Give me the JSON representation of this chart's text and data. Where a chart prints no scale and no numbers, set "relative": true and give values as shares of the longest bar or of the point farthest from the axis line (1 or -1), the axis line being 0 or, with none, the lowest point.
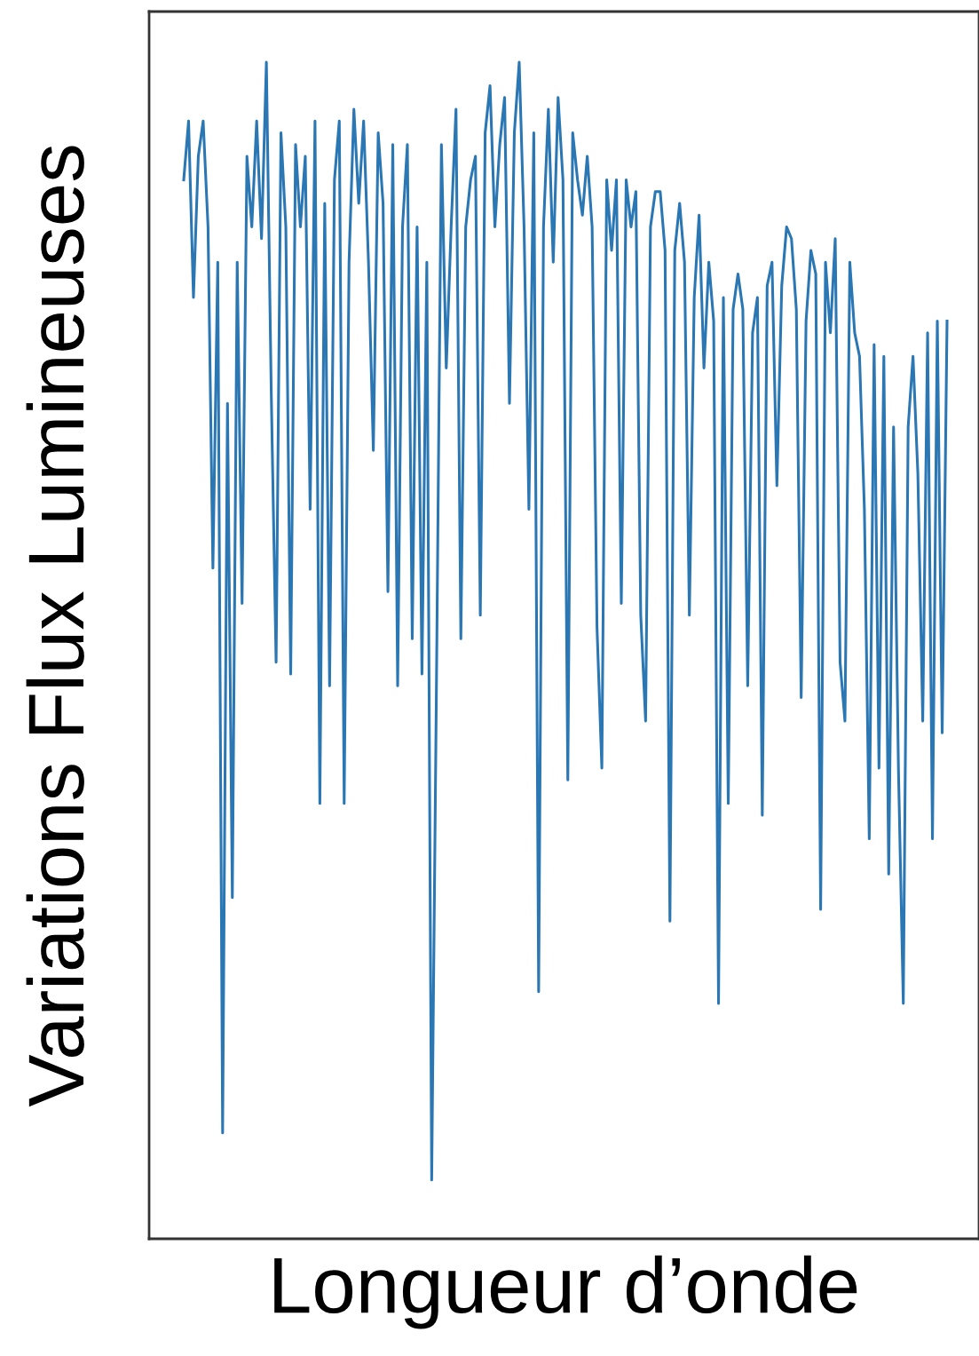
{
  "chart_data": {
    "type": "line",
    "relative": true,
    "xlabel": "Longueur d’onde",
    "ylabel": "Variations Flux Lumineuses",
    "color": "#2a77b4",
    "categories": [
      null,
      null,
      null,
      null,
      null,
      null,
      null,
      null,
      null,
      null,
      null,
      null,
      null,
      null,
      null,
      null,
      null,
      null,
      null,
      null,
      null,
      null,
      null,
      null,
      null,
      null,
      null,
      null,
      null,
      null,
      null,
      null,
      null,
      null,
      null,
      null,
      null,
      null,
      null,
      null,
      null,
      null,
      null,
      null,
      null,
      null,
      null,
      null,
      null,
      null,
      null,
      null,
      null,
      null,
      null,
      null,
      null,
      null,
      null,
      null,
      null,
      null,
      null,
      null,
      null,
      null,
      null,
      null,
      null,
      null,
      null,
      null,
      null,
      null,
      null,
      null,
      null,
      null,
      null,
      null,
      null,
      null,
      null,
      null,
      null,
      null,
      null,
      null,
      null,
      null,
      null,
      null,
      null,
      null,
      null,
      null,
      null,
      null,
      null,
      null,
      null,
      null,
      null,
      null,
      null,
      null,
      null,
      null,
      null,
      null,
      null,
      null,
      null,
      null,
      null,
      null,
      null,
      null,
      null,
      null,
      null,
      null,
      null,
      null,
      null,
      null,
      null,
      null,
      null,
      null,
      null,
      null,
      null,
      null,
      null,
      null,
      null,
      null,
      null,
      null,
      null,
      null,
      null,
      null,
      null,
      null,
      null,
      null,
      null,
      null,
      null,
      null,
      null,
      null,
      null,
      null,
      null,
      null
    ],
    "values": [
      0.9,
      0.95,
      0.8,
      0.92,
      0.95,
      0.86,
      0.57,
      0.83,
      0.09,
      0.71,
      0.29,
      0.83,
      0.54,
      0.92,
      0.86,
      0.95,
      0.85,
      1.0,
      0.72,
      0.49,
      0.94,
      0.86,
      0.48,
      0.93,
      0.86,
      0.92,
      0.62,
      0.95,
      0.37,
      0.88,
      0.47,
      0.9,
      0.95,
      0.37,
      0.83,
      0.96,
      0.88,
      0.95,
      0.83,
      0.67,
      0.94,
      0.88,
      0.55,
      0.93,
      0.47,
      0.86,
      0.93,
      0.51,
      0.86,
      0.48,
      0.83,
      0.05,
      0.48,
      0.93,
      0.74,
      0.86,
      0.96,
      0.51,
      0.86,
      0.9,
      0.92,
      0.53,
      0.94,
      0.98,
      0.86,
      0.93,
      0.97,
      0.71,
      0.94,
      1.0,
      0.86,
      0.62,
      0.94,
      0.21,
      0.86,
      0.96,
      0.83,
      0.97,
      0.9,
      0.39,
      0.94,
      0.9,
      0.87,
      0.92,
      0.86,
      0.52,
      0.4,
      0.9,
      0.84,
      0.9,
      0.54,
      0.9,
      0.86,
      0.89,
      0.53,
      0.44,
      0.86,
      0.89,
      0.89,
      0.84,
      0.27,
      0.84,
      0.88,
      0.83,
      0.53,
      0.8,
      0.87,
      0.74,
      0.83,
      0.78,
      0.2,
      0.8,
      0.37,
      0.79,
      0.82,
      0.79,
      0.47,
      0.77,
      0.8,
      0.36,
      0.81,
      0.83,
      0.64,
      0.81,
      0.86,
      0.85,
      0.79,
      0.46,
      0.78,
      0.84,
      0.82,
      0.28,
      0.83,
      0.77,
      0.85,
      0.49,
      0.44,
      0.83,
      0.77,
      0.75,
      0.62,
      0.34,
      0.76,
      0.4,
      0.75,
      0.31,
      0.69,
      0.4,
      0.2,
      0.69,
      0.75,
      0.65,
      0.44,
      0.77,
      0.34,
      0.78,
      0.43,
      0.78
    ]
  }
}
